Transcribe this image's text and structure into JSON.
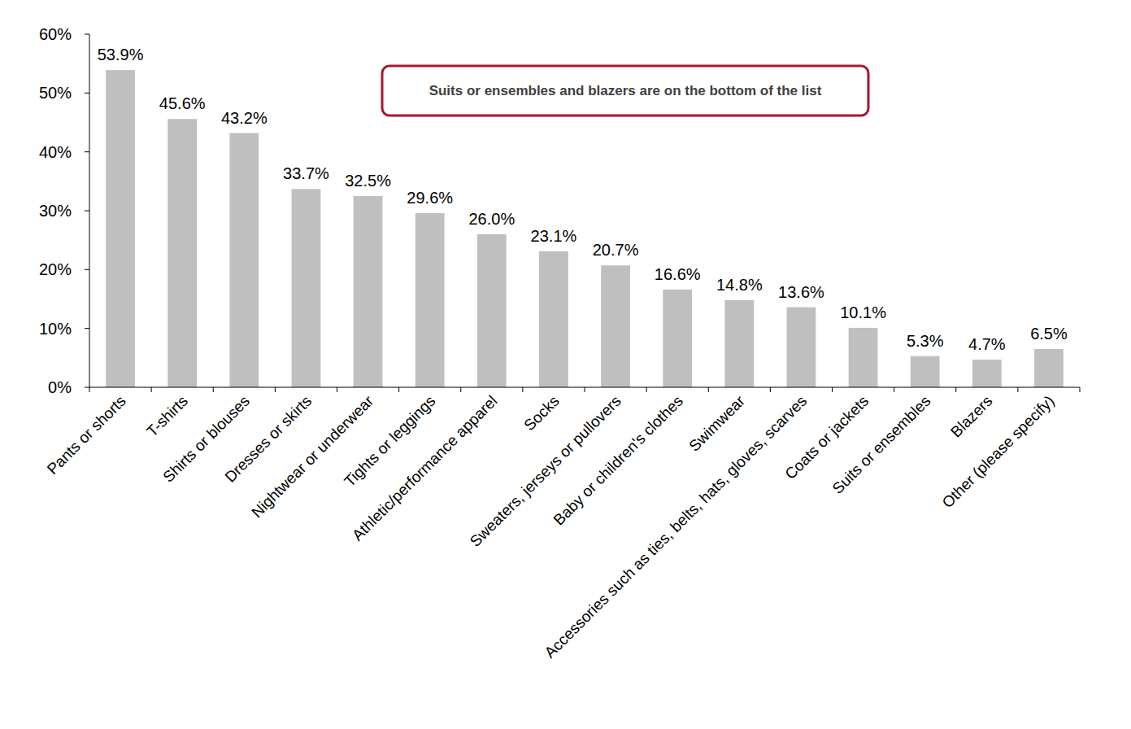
{
  "chart_data": {
    "type": "bar",
    "categories": [
      "Pants or shorts",
      "T-shirts",
      "Shirts or blouses",
      "Dresses or skirts",
      "Nightwear or underwear",
      "Tights or leggings",
      "Athletic/performance apparel",
      "Socks",
      "Sweaters, jerseys or pullovers",
      "Baby or children's clothes",
      "Swimwear",
      "Accessories such as ties, belts, hats, gloves, scarves",
      "Coats or jackets",
      "Suits or ensembles",
      "Blazers",
      "Other (please specify)"
    ],
    "values": [
      53.9,
      45.6,
      43.2,
      33.7,
      32.5,
      29.6,
      26.0,
      23.1,
      20.7,
      16.6,
      14.8,
      13.6,
      10.1,
      5.3,
      4.7,
      6.5
    ],
    "value_labels": [
      "53.9%",
      "45.6%",
      "43.2%",
      "33.7%",
      "32.5%",
      "29.6%",
      "26.0%",
      "23.1%",
      "20.7%",
      "16.6%",
      "14.8%",
      "13.6%",
      "10.1%",
      "5.3%",
      "4.7%",
      "6.5%"
    ],
    "color": "#bfbfbf",
    "ylim": [
      0,
      60
    ],
    "yticks": [
      {
        "value": 0,
        "label": "0%"
      },
      {
        "value": 10,
        "label": "10%"
      },
      {
        "value": 20,
        "label": "20%"
      },
      {
        "value": 30,
        "label": "30%"
      },
      {
        "value": 40,
        "label": "40%"
      },
      {
        "value": 50,
        "label": "50%"
      },
      {
        "value": 60,
        "label": "60%"
      }
    ],
    "grid": false,
    "data_labels": true,
    "annotations": [
      "Suits or ensembles and blazers are on the bottom of the list"
    ]
  }
}
